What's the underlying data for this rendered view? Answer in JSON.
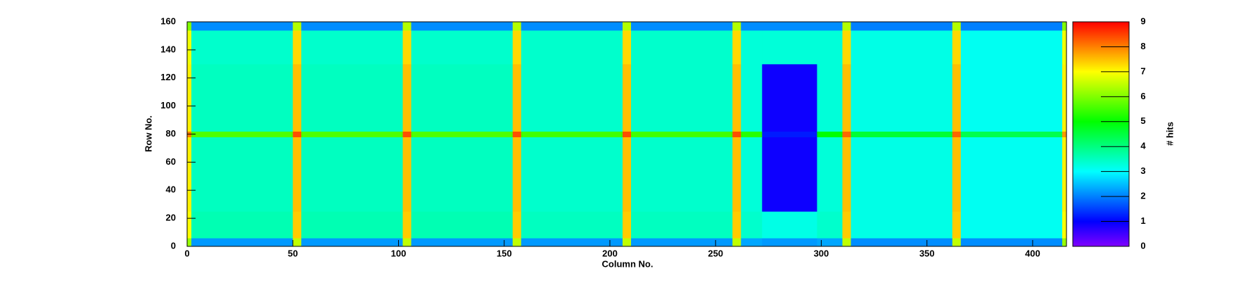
{
  "chart_data": {
    "type": "heatmap",
    "xlabel": "Column No.",
    "ylabel": "Row No.",
    "zlabel": "# hits",
    "xbins": [
      0,
      2,
      50,
      54,
      102,
      106,
      154,
      158,
      206,
      210,
      258,
      262,
      272,
      298,
      310,
      314,
      362,
      366,
      414,
      416
    ],
    "ybins": [
      0,
      6,
      25,
      78,
      82,
      130,
      154,
      160
    ],
    "z": [
      [
        6.2,
        2.2,
        6.5,
        2.2,
        6.5,
        2.2,
        6.5,
        2.2,
        6.5,
        2.2,
        6.5,
        2.3,
        2.2,
        2.3,
        6.5,
        2.1,
        6.5,
        2.1,
        6.2
      ],
      [
        7.0,
        3.6,
        7.4,
        3.6,
        7.4,
        3.6,
        7.4,
        3.5,
        7.4,
        3.5,
        7.4,
        3.4,
        3.2,
        3.4,
        7.4,
        3.2,
        7.4,
        3.1,
        7.0
      ],
      [
        7.1,
        3.5,
        7.5,
        3.5,
        7.5,
        3.5,
        7.5,
        3.4,
        7.5,
        3.4,
        7.5,
        3.3,
        0.9,
        3.3,
        7.5,
        3.2,
        7.5,
        3.1,
        7.1
      ],
      [
        8.0,
        5.6,
        8.4,
        5.6,
        8.4,
        5.6,
        8.4,
        5.5,
        8.4,
        5.5,
        8.4,
        5.3,
        1.2,
        5.0,
        8.2,
        4.6,
        8.2,
        4.4,
        7.8
      ],
      [
        7.1,
        3.5,
        7.5,
        3.5,
        7.5,
        3.5,
        7.5,
        3.4,
        7.5,
        3.4,
        7.5,
        3.3,
        0.9,
        3.3,
        7.5,
        3.2,
        7.5,
        3.1,
        7.1
      ],
      [
        6.9,
        3.4,
        7.3,
        3.4,
        7.3,
        3.4,
        7.3,
        3.4,
        7.3,
        3.4,
        7.3,
        3.3,
        3.3,
        3.3,
        7.3,
        3.2,
        7.3,
        3.1,
        6.9
      ],
      [
        6.0,
        2.1,
        6.4,
        2.1,
        6.4,
        2.1,
        6.4,
        2.1,
        6.4,
        2.1,
        6.4,
        2.1,
        2.1,
        2.1,
        6.4,
        2.0,
        6.4,
        2.0,
        6.0
      ]
    ],
    "xlim": [
      0,
      416
    ],
    "xticks": [
      0,
      50,
      100,
      150,
      200,
      250,
      300,
      350,
      400
    ],
    "ylim": [
      0,
      160
    ],
    "yticks": [
      0,
      20,
      40,
      60,
      80,
      100,
      120,
      140,
      160
    ],
    "zlim": [
      0,
      9
    ],
    "zticks": [
      0,
      1,
      2,
      3,
      4,
      5,
      6,
      7,
      8,
      9
    ],
    "colorscale": [
      "#8000ff",
      "#0000ff",
      "#0080ff",
      "#00ffff",
      "#00ff80",
      "#00ff00",
      "#80ff00",
      "#ffff00",
      "#ff8000",
      "#ff0000"
    ]
  }
}
